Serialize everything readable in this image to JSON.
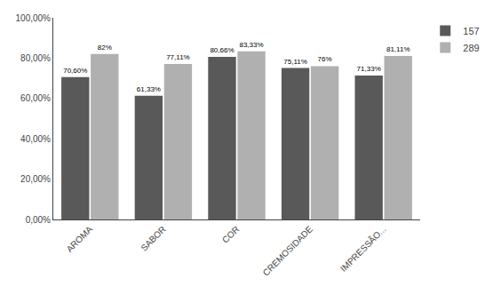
{
  "chart_data": {
    "type": "bar",
    "categories": [
      "AROMA",
      "SABOR",
      "COR",
      "CREMOSIDADE",
      "IMPRESSÃO..."
    ],
    "series": [
      {
        "name": "157",
        "color": "#595959",
        "values": [
          70.6,
          61.33,
          80.66,
          75.11,
          71.33
        ],
        "value_labels": [
          "70,60%",
          "61,33%",
          "80,66%",
          "75,11%",
          "71,33%"
        ]
      },
      {
        "name": "289",
        "color": "#B0B0B0",
        "values": [
          82.0,
          77.11,
          83.33,
          76.0,
          81.11
        ],
        "value_labels": [
          "82%",
          "77,11%",
          "83,33%",
          "76%",
          "81,11%"
        ]
      }
    ],
    "ylim": [
      0,
      100
    ],
    "yticks": [
      {
        "value": 0,
        "label": "0,00%"
      },
      {
        "value": 20,
        "label": "20,00%"
      },
      {
        "value": 40,
        "label": "40,00%"
      },
      {
        "value": 60,
        "label": "60,00%"
      },
      {
        "value": 80,
        "label": "80,00%"
      },
      {
        "value": 100,
        "label": "100,00%"
      }
    ],
    "data_labels": true,
    "legend": "right",
    "grid": false
  }
}
